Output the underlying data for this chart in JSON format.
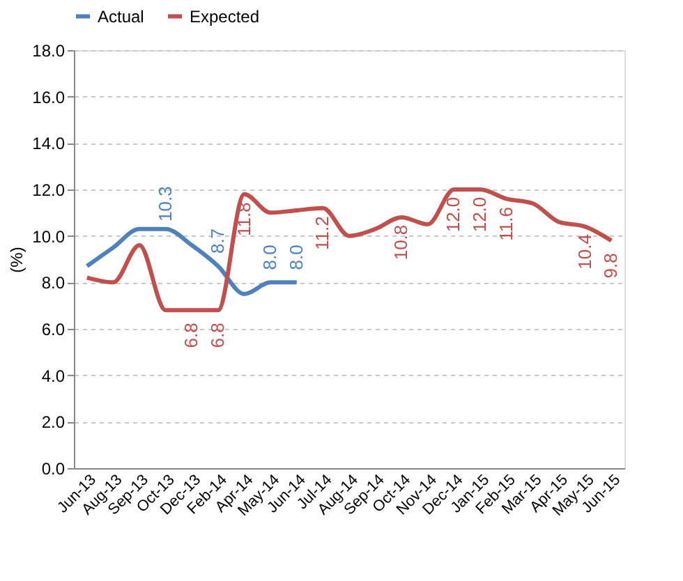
{
  "chart_data": {
    "type": "line",
    "ylabel": "(%)",
    "categories": [
      "Jun-13",
      "Aug-13",
      "Sep-13",
      "Oct-13",
      "Dec-13",
      "Feb-14",
      "Apr-14",
      "May-14",
      "Jun-14",
      "Jul-14",
      "Aug-14",
      "Sep-14",
      "Oct-14",
      "Nov-14",
      "Dec-14",
      "Jan-15",
      "Feb-15",
      "Mar-15",
      "Apr-15",
      "May-15",
      "Jun-15"
    ],
    "series": [
      {
        "name": "Actual",
        "color": "#4f81bd",
        "values": [
          8.7,
          9.5,
          10.3,
          10.3,
          9.6,
          8.7,
          7.5,
          8.0,
          8.0,
          null,
          null,
          null,
          null,
          null,
          null,
          null,
          null,
          null,
          null,
          null,
          null
        ],
        "value_labels": [
          null,
          null,
          null,
          "10.3",
          null,
          "8.7",
          null,
          "8.0",
          "8.0",
          null,
          null,
          null,
          null,
          null,
          null,
          null,
          null,
          null,
          null,
          null,
          null
        ]
      },
      {
        "name": "Expected",
        "color": "#c0504d",
        "values": [
          8.2,
          8.0,
          9.6,
          6.8,
          6.8,
          6.8,
          11.8,
          11.0,
          11.1,
          11.2,
          10.0,
          10.3,
          10.8,
          10.5,
          12.0,
          12.0,
          11.6,
          11.4,
          10.6,
          10.4,
          9.8
        ],
        "value_labels": [
          null,
          null,
          null,
          null,
          "6.8",
          "6.8",
          "11.8",
          null,
          null,
          "11.2",
          null,
          null,
          "10.8",
          null,
          "12.0",
          "12.0",
          "11.6",
          null,
          null,
          "10.4",
          "9.8"
        ]
      }
    ],
    "ylim": [
      0,
      18
    ],
    "yticks": [
      {
        "value": 0,
        "label": "0.0"
      },
      {
        "value": 2,
        "label": "2.0"
      },
      {
        "value": 4,
        "label": "4.0"
      },
      {
        "value": 6,
        "label": "6.0"
      },
      {
        "value": 8,
        "label": "8.0"
      },
      {
        "value": 10,
        "label": "10.0"
      },
      {
        "value": 12,
        "label": "12.0"
      },
      {
        "value": 14,
        "label": "14.0"
      },
      {
        "value": 16,
        "label": "16.0"
      },
      {
        "value": 18,
        "label": "18.0"
      }
    ],
    "grid": "y",
    "legend": "top",
    "marker": "none",
    "line_style": "solid"
  }
}
